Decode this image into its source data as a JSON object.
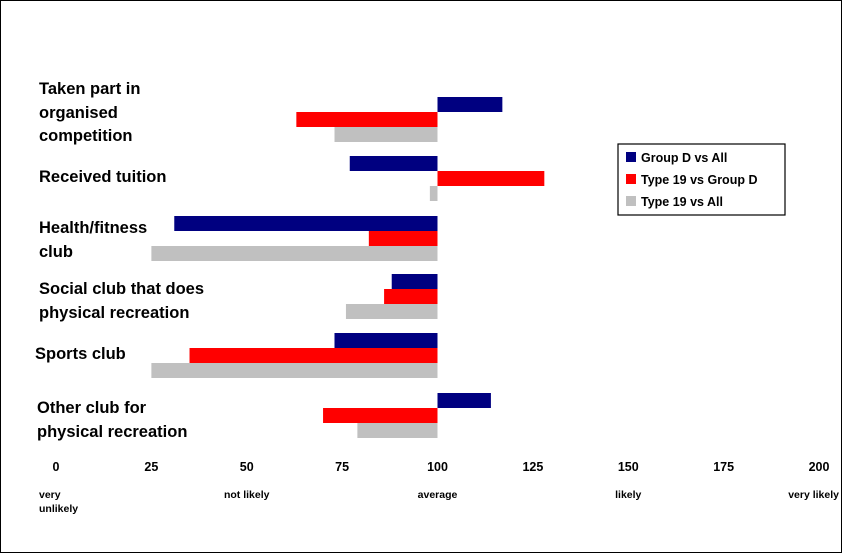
{
  "chart_data": {
    "type": "bar",
    "orientation": "horizontal",
    "baseline": 100,
    "categories": [
      [
        "Taken part in",
        "organised",
        "competition"
      ],
      [
        "Received tuition"
      ],
      [
        "Health/fitness",
        "club"
      ],
      [
        "Social club that does",
        "physical recreation"
      ],
      [
        "Sports club"
      ],
      [
        "Other club for",
        "physical recreation"
      ]
    ],
    "series": [
      {
        "name": "Group D vs All",
        "color": "#000080",
        "values": [
          117,
          77,
          31,
          88,
          73,
          114
        ]
      },
      {
        "name": "Type 19 vs Group D",
        "color": "#ff0000",
        "values": [
          63,
          128,
          82,
          86,
          35,
          70
        ]
      },
      {
        "name": "Type 19 vs All",
        "color": "#c0c0c0",
        "values": [
          73,
          98,
          25,
          76,
          25,
          79
        ]
      }
    ],
    "xlim": [
      0,
      200
    ],
    "xticks": [
      "0",
      "25",
      "50",
      "75",
      "100",
      "125",
      "150",
      "175",
      "200"
    ],
    "scale_labels": [
      {
        "value": 0,
        "lines": [
          "very",
          "unlikely"
        ]
      },
      {
        "value": 50,
        "lines": [
          "not likely"
        ]
      },
      {
        "value": 100,
        "lines": [
          "average"
        ]
      },
      {
        "value": 150,
        "lines": [
          "likely"
        ]
      },
      {
        "value": 200,
        "lines": [
          "very likely"
        ]
      }
    ],
    "legend_position": "right",
    "grid": false
  }
}
